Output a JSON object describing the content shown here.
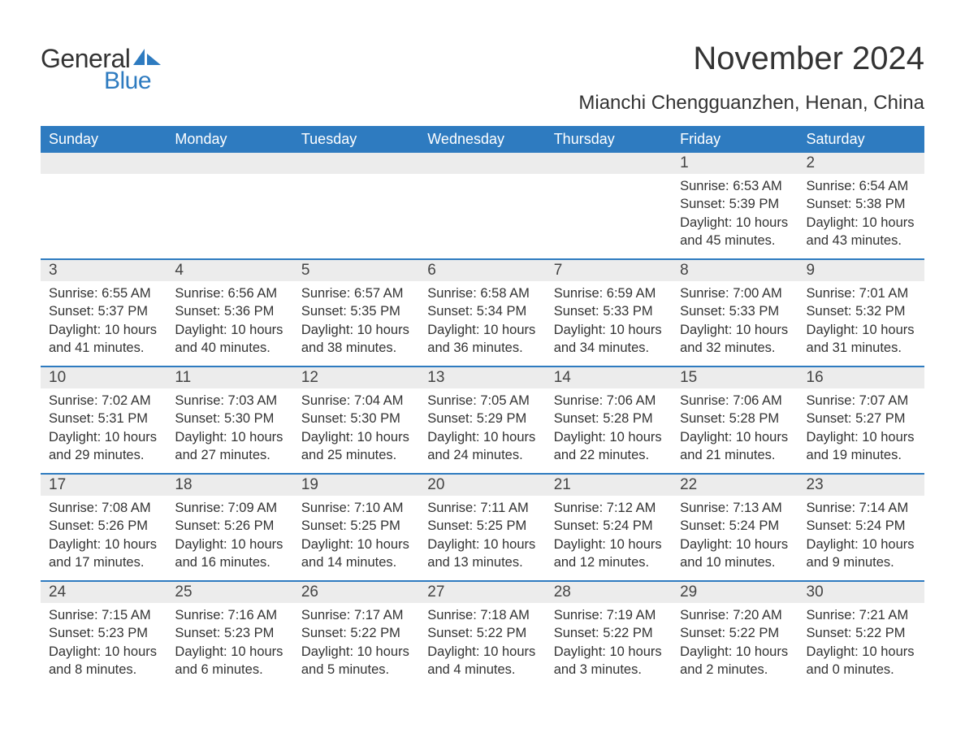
{
  "logo": {
    "text_general": "General",
    "text_blue": "Blue",
    "icon_color": "#2e7bc0"
  },
  "title": "November 2024",
  "location": "Mianchi Chengguanzhen, Henan, China",
  "colors": {
    "header_bg": "#2e7bc0",
    "header_text": "#ffffff",
    "daynum_bg": "#ececec",
    "text": "#333333",
    "border": "#2e7bc0"
  },
  "day_headers": [
    "Sunday",
    "Monday",
    "Tuesday",
    "Wednesday",
    "Thursday",
    "Friday",
    "Saturday"
  ],
  "weeks": [
    [
      null,
      null,
      null,
      null,
      null,
      {
        "n": "1",
        "sunrise": "Sunrise: 6:53 AM",
        "sunset": "Sunset: 5:39 PM",
        "daylight": "Daylight: 10 hours and 45 minutes."
      },
      {
        "n": "2",
        "sunrise": "Sunrise: 6:54 AM",
        "sunset": "Sunset: 5:38 PM",
        "daylight": "Daylight: 10 hours and 43 minutes."
      }
    ],
    [
      {
        "n": "3",
        "sunrise": "Sunrise: 6:55 AM",
        "sunset": "Sunset: 5:37 PM",
        "daylight": "Daylight: 10 hours and 41 minutes."
      },
      {
        "n": "4",
        "sunrise": "Sunrise: 6:56 AM",
        "sunset": "Sunset: 5:36 PM",
        "daylight": "Daylight: 10 hours and 40 minutes."
      },
      {
        "n": "5",
        "sunrise": "Sunrise: 6:57 AM",
        "sunset": "Sunset: 5:35 PM",
        "daylight": "Daylight: 10 hours and 38 minutes."
      },
      {
        "n": "6",
        "sunrise": "Sunrise: 6:58 AM",
        "sunset": "Sunset: 5:34 PM",
        "daylight": "Daylight: 10 hours and 36 minutes."
      },
      {
        "n": "7",
        "sunrise": "Sunrise: 6:59 AM",
        "sunset": "Sunset: 5:33 PM",
        "daylight": "Daylight: 10 hours and 34 minutes."
      },
      {
        "n": "8",
        "sunrise": "Sunrise: 7:00 AM",
        "sunset": "Sunset: 5:33 PM",
        "daylight": "Daylight: 10 hours and 32 minutes."
      },
      {
        "n": "9",
        "sunrise": "Sunrise: 7:01 AM",
        "sunset": "Sunset: 5:32 PM",
        "daylight": "Daylight: 10 hours and 31 minutes."
      }
    ],
    [
      {
        "n": "10",
        "sunrise": "Sunrise: 7:02 AM",
        "sunset": "Sunset: 5:31 PM",
        "daylight": "Daylight: 10 hours and 29 minutes."
      },
      {
        "n": "11",
        "sunrise": "Sunrise: 7:03 AM",
        "sunset": "Sunset: 5:30 PM",
        "daylight": "Daylight: 10 hours and 27 minutes."
      },
      {
        "n": "12",
        "sunrise": "Sunrise: 7:04 AM",
        "sunset": "Sunset: 5:30 PM",
        "daylight": "Daylight: 10 hours and 25 minutes."
      },
      {
        "n": "13",
        "sunrise": "Sunrise: 7:05 AM",
        "sunset": "Sunset: 5:29 PM",
        "daylight": "Daylight: 10 hours and 24 minutes."
      },
      {
        "n": "14",
        "sunrise": "Sunrise: 7:06 AM",
        "sunset": "Sunset: 5:28 PM",
        "daylight": "Daylight: 10 hours and 22 minutes."
      },
      {
        "n": "15",
        "sunrise": "Sunrise: 7:06 AM",
        "sunset": "Sunset: 5:28 PM",
        "daylight": "Daylight: 10 hours and 21 minutes."
      },
      {
        "n": "16",
        "sunrise": "Sunrise: 7:07 AM",
        "sunset": "Sunset: 5:27 PM",
        "daylight": "Daylight: 10 hours and 19 minutes."
      }
    ],
    [
      {
        "n": "17",
        "sunrise": "Sunrise: 7:08 AM",
        "sunset": "Sunset: 5:26 PM",
        "daylight": "Daylight: 10 hours and 17 minutes."
      },
      {
        "n": "18",
        "sunrise": "Sunrise: 7:09 AM",
        "sunset": "Sunset: 5:26 PM",
        "daylight": "Daylight: 10 hours and 16 minutes."
      },
      {
        "n": "19",
        "sunrise": "Sunrise: 7:10 AM",
        "sunset": "Sunset: 5:25 PM",
        "daylight": "Daylight: 10 hours and 14 minutes."
      },
      {
        "n": "20",
        "sunrise": "Sunrise: 7:11 AM",
        "sunset": "Sunset: 5:25 PM",
        "daylight": "Daylight: 10 hours and 13 minutes."
      },
      {
        "n": "21",
        "sunrise": "Sunrise: 7:12 AM",
        "sunset": "Sunset: 5:24 PM",
        "daylight": "Daylight: 10 hours and 12 minutes."
      },
      {
        "n": "22",
        "sunrise": "Sunrise: 7:13 AM",
        "sunset": "Sunset: 5:24 PM",
        "daylight": "Daylight: 10 hours and 10 minutes."
      },
      {
        "n": "23",
        "sunrise": "Sunrise: 7:14 AM",
        "sunset": "Sunset: 5:24 PM",
        "daylight": "Daylight: 10 hours and 9 minutes."
      }
    ],
    [
      {
        "n": "24",
        "sunrise": "Sunrise: 7:15 AM",
        "sunset": "Sunset: 5:23 PM",
        "daylight": "Daylight: 10 hours and 8 minutes."
      },
      {
        "n": "25",
        "sunrise": "Sunrise: 7:16 AM",
        "sunset": "Sunset: 5:23 PM",
        "daylight": "Daylight: 10 hours and 6 minutes."
      },
      {
        "n": "26",
        "sunrise": "Sunrise: 7:17 AM",
        "sunset": "Sunset: 5:22 PM",
        "daylight": "Daylight: 10 hours and 5 minutes."
      },
      {
        "n": "27",
        "sunrise": "Sunrise: 7:18 AM",
        "sunset": "Sunset: 5:22 PM",
        "daylight": "Daylight: 10 hours and 4 minutes."
      },
      {
        "n": "28",
        "sunrise": "Sunrise: 7:19 AM",
        "sunset": "Sunset: 5:22 PM",
        "daylight": "Daylight: 10 hours and 3 minutes."
      },
      {
        "n": "29",
        "sunrise": "Sunrise: 7:20 AM",
        "sunset": "Sunset: 5:22 PM",
        "daylight": "Daylight: 10 hours and 2 minutes."
      },
      {
        "n": "30",
        "sunrise": "Sunrise: 7:21 AM",
        "sunset": "Sunset: 5:22 PM",
        "daylight": "Daylight: 10 hours and 0 minutes."
      }
    ]
  ]
}
